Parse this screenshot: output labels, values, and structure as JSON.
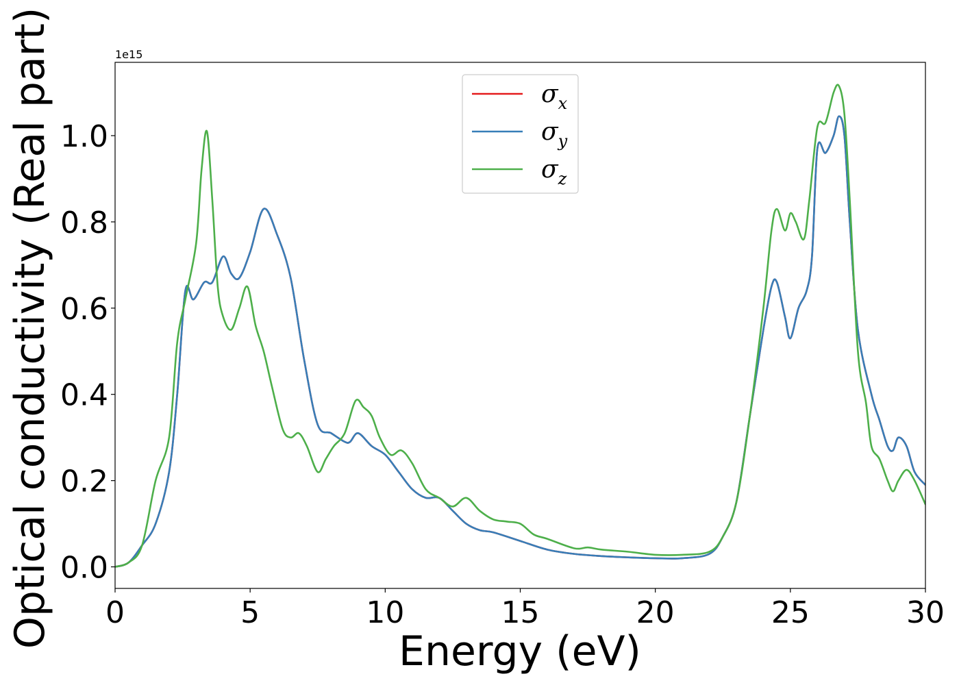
{
  "chart_data": {
    "type": "line",
    "xlabel": "Energy (eV)",
    "ylabel": "Optical conductivity (Real part)",
    "y_offset_text": "1e15",
    "xlim": [
      0,
      30
    ],
    "ylim": [
      -0.05,
      1.17
    ],
    "x_ticks": [
      0,
      5,
      10,
      15,
      20,
      25,
      30
    ],
    "x_tick_labels": [
      "0",
      "5",
      "10",
      "15",
      "20",
      "25",
      "30"
    ],
    "y_ticks": [
      0.0,
      0.2,
      0.4,
      0.6,
      0.8,
      1.0
    ],
    "y_tick_labels": [
      "0.0",
      "0.2",
      "0.4",
      "0.6",
      "0.8",
      "1.0"
    ],
    "grid": false,
    "legend_position": "top-center",
    "series": [
      {
        "name": "σx",
        "legend_symbol": "σ",
        "legend_subscript": "x",
        "color": "#e41a1c",
        "x": [
          0,
          0.5,
          1.0,
          1.5,
          2.0,
          2.3,
          2.6,
          2.9,
          3.3,
          3.6,
          4.0,
          4.3,
          4.6,
          5.0,
          5.5,
          6.0,
          6.5,
          7.0,
          7.5,
          8.0,
          8.5,
          8.7,
          9.0,
          9.5,
          10.0,
          10.5,
          11.0,
          11.5,
          12.0,
          12.5,
          13.0,
          13.5,
          14.0,
          15.0,
          16.0,
          17.0,
          18.0,
          19.0,
          20.0,
          21.0,
          22.0,
          22.5,
          23.0,
          23.5,
          24.0,
          24.3,
          24.5,
          24.8,
          25.0,
          25.3,
          25.6,
          25.8,
          26.0,
          26.3,
          26.6,
          26.8,
          27.0,
          27.2,
          27.5,
          28.0,
          28.3,
          28.6,
          28.8,
          29.0,
          29.3,
          29.6,
          30.0
        ],
        "values": [
          0.0,
          0.01,
          0.05,
          0.1,
          0.22,
          0.4,
          0.64,
          0.62,
          0.66,
          0.66,
          0.72,
          0.68,
          0.67,
          0.73,
          0.83,
          0.77,
          0.67,
          0.48,
          0.33,
          0.31,
          0.29,
          0.29,
          0.31,
          0.28,
          0.26,
          0.22,
          0.18,
          0.16,
          0.16,
          0.13,
          0.1,
          0.085,
          0.08,
          0.06,
          0.04,
          0.03,
          0.025,
          0.022,
          0.02,
          0.02,
          0.03,
          0.07,
          0.15,
          0.35,
          0.55,
          0.65,
          0.66,
          0.58,
          0.53,
          0.6,
          0.64,
          0.72,
          0.97,
          0.96,
          1.0,
          1.045,
          1.0,
          0.8,
          0.55,
          0.4,
          0.34,
          0.28,
          0.27,
          0.3,
          0.28,
          0.22,
          0.19
        ]
      },
      {
        "name": "σy",
        "legend_symbol": "σ",
        "legend_subscript": "y",
        "color": "#377eb8",
        "x": [
          0,
          0.5,
          1.0,
          1.5,
          2.0,
          2.3,
          2.6,
          2.9,
          3.3,
          3.6,
          4.0,
          4.3,
          4.6,
          5.0,
          5.5,
          6.0,
          6.5,
          7.0,
          7.5,
          8.0,
          8.5,
          8.7,
          9.0,
          9.5,
          10.0,
          10.5,
          11.0,
          11.5,
          12.0,
          12.5,
          13.0,
          13.5,
          14.0,
          15.0,
          16.0,
          17.0,
          18.0,
          19.0,
          20.0,
          21.0,
          22.0,
          22.5,
          23.0,
          23.5,
          24.0,
          24.3,
          24.5,
          24.8,
          25.0,
          25.3,
          25.6,
          25.8,
          26.0,
          26.3,
          26.6,
          26.8,
          27.0,
          27.2,
          27.5,
          28.0,
          28.3,
          28.6,
          28.8,
          29.0,
          29.3,
          29.6,
          30.0
        ],
        "values": [
          0.0,
          0.01,
          0.05,
          0.1,
          0.22,
          0.4,
          0.64,
          0.62,
          0.66,
          0.66,
          0.72,
          0.68,
          0.67,
          0.73,
          0.83,
          0.77,
          0.67,
          0.48,
          0.33,
          0.31,
          0.29,
          0.29,
          0.31,
          0.28,
          0.26,
          0.22,
          0.18,
          0.16,
          0.16,
          0.13,
          0.1,
          0.085,
          0.08,
          0.06,
          0.04,
          0.03,
          0.025,
          0.022,
          0.02,
          0.02,
          0.03,
          0.07,
          0.15,
          0.35,
          0.55,
          0.65,
          0.66,
          0.58,
          0.53,
          0.6,
          0.64,
          0.72,
          0.97,
          0.96,
          1.0,
          1.045,
          1.0,
          0.8,
          0.55,
          0.4,
          0.34,
          0.28,
          0.27,
          0.3,
          0.28,
          0.22,
          0.19
        ]
      },
      {
        "name": "σz",
        "legend_symbol": "σ",
        "legend_subscript": "z",
        "color": "#4daf4a",
        "x": [
          0,
          0.5,
          1.0,
          1.5,
          2.0,
          2.3,
          2.6,
          3.0,
          3.2,
          3.4,
          3.6,
          3.8,
          4.0,
          4.3,
          4.6,
          4.9,
          5.2,
          5.5,
          5.8,
          6.2,
          6.5,
          6.8,
          7.1,
          7.5,
          7.8,
          8.1,
          8.5,
          8.9,
          9.2,
          9.5,
          9.8,
          10.2,
          10.6,
          11.0,
          11.5,
          12.0,
          12.5,
          13.0,
          13.5,
          14.0,
          14.5,
          15.0,
          15.5,
          16.0,
          17.0,
          17.5,
          18.0,
          19.0,
          20.0,
          21.0,
          22.0,
          22.5,
          23.0,
          23.5,
          24.0,
          24.3,
          24.5,
          24.8,
          25.0,
          25.2,
          25.5,
          25.7,
          26.0,
          26.3,
          26.6,
          26.8,
          27.0,
          27.2,
          27.5,
          27.8,
          28.0,
          28.3,
          28.6,
          28.8,
          29.0,
          29.3,
          29.6,
          30.0
        ],
        "values": [
          0.0,
          0.01,
          0.05,
          0.2,
          0.3,
          0.52,
          0.62,
          0.75,
          0.92,
          1.01,
          0.85,
          0.65,
          0.58,
          0.55,
          0.6,
          0.65,
          0.56,
          0.5,
          0.42,
          0.32,
          0.3,
          0.31,
          0.28,
          0.22,
          0.25,
          0.28,
          0.31,
          0.385,
          0.37,
          0.35,
          0.3,
          0.26,
          0.27,
          0.24,
          0.18,
          0.16,
          0.14,
          0.16,
          0.13,
          0.11,
          0.105,
          0.1,
          0.075,
          0.065,
          0.043,
          0.045,
          0.04,
          0.035,
          0.028,
          0.028,
          0.035,
          0.07,
          0.15,
          0.35,
          0.6,
          0.78,
          0.83,
          0.78,
          0.82,
          0.8,
          0.76,
          0.85,
          1.02,
          1.03,
          1.1,
          1.115,
          1.05,
          0.85,
          0.5,
          0.38,
          0.28,
          0.25,
          0.2,
          0.175,
          0.2,
          0.225,
          0.2,
          0.145
        ]
      }
    ]
  }
}
